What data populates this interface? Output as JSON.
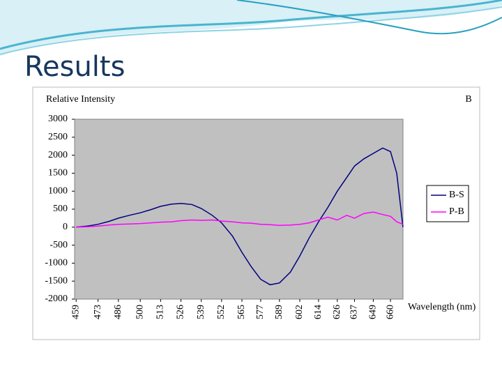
{
  "slide_title": "Results",
  "chart_data": {
    "type": "line",
    "y_axis_label": "Relative Intensity",
    "x_axis_label": "Wavelength (nm)",
    "annotation": "B",
    "x": [
      459,
      466,
      473,
      480,
      486,
      493,
      500,
      507,
      513,
      520,
      526,
      533,
      539,
      546,
      552,
      559,
      565,
      571,
      577,
      583,
      589,
      596,
      602,
      608,
      614,
      620,
      626,
      632,
      637,
      643,
      649,
      655,
      660,
      664,
      668
    ],
    "series": [
      {
        "name": "B-S",
        "color": "#000080",
        "values": [
          0,
          30,
          80,
          160,
          250,
          330,
          400,
          490,
          580,
          640,
          660,
          630,
          520,
          330,
          120,
          -250,
          -700,
          -1100,
          -1450,
          -1600,
          -1550,
          -1250,
          -800,
          -300,
          150,
          550,
          1000,
          1380,
          1700,
          1900,
          2050,
          2200,
          2100,
          1500,
          0
        ]
      },
      {
        "name": "P-B",
        "color": "#ff00ff",
        "values": [
          0,
          10,
          30,
          60,
          80,
          90,
          100,
          120,
          140,
          150,
          180,
          200,
          190,
          200,
          170,
          150,
          120,
          110,
          80,
          70,
          50,
          60,
          80,
          120,
          200,
          280,
          200,
          330,
          250,
          380,
          420,
          350,
          300,
          150,
          80
        ]
      }
    ],
    "xlim": [
      458,
      668
    ],
    "xticks": [
      459,
      473,
      486,
      500,
      513,
      526,
      539,
      552,
      565,
      577,
      589,
      602,
      614,
      626,
      637,
      649,
      660
    ],
    "ylim": [
      -2000,
      3000
    ],
    "yticks": [
      3000,
      2500,
      2000,
      1500,
      1000,
      500,
      0,
      -500,
      -1000,
      -1500,
      -2000
    ],
    "grid": false,
    "legend": "right",
    "plot_background": "#c0c0c0"
  }
}
